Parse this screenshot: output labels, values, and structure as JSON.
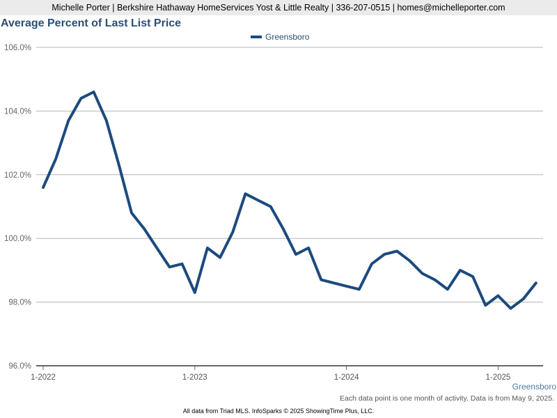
{
  "header": {
    "text": "Michelle Porter | Berkshire Hathaway HomeServices Yost & Little Realty | 336-207-0515 | homes@michelleporter.com"
  },
  "chart_data": {
    "type": "line",
    "title": "Average Percent of Last List Price",
    "xlabel": "",
    "ylabel": "",
    "ylim": [
      96,
      106
    ],
    "y_ticks": [
      {
        "value": 96,
        "label": "96.0%"
      },
      {
        "value": 98,
        "label": "98.0%"
      },
      {
        "value": 100,
        "label": "100.0%"
      },
      {
        "value": 102,
        "label": "102.0%"
      },
      {
        "value": 104,
        "label": "104.0%"
      },
      {
        "value": 106,
        "label": "106.0%"
      }
    ],
    "x_ticks": [
      {
        "index": 0,
        "label": "1-2022"
      },
      {
        "index": 12,
        "label": "1-2023"
      },
      {
        "index": 24,
        "label": "1-2024"
      },
      {
        "index": 36,
        "label": "1-2025"
      }
    ],
    "x_start": "2022-01",
    "x_step": "month",
    "grid": true,
    "legend_position": "top-center",
    "series": [
      {
        "name": "Greensboro",
        "color": "#1c4a7e",
        "values": [
          101.6,
          102.5,
          103.7,
          104.4,
          104.6,
          103.7,
          102.3,
          100.8,
          100.3,
          99.7,
          99.1,
          99.2,
          98.3,
          99.7,
          99.4,
          100.2,
          101.4,
          101.2,
          101.0,
          100.3,
          99.5,
          99.7,
          98.7,
          98.6,
          98.5,
          98.4,
          99.2,
          99.5,
          99.6,
          99.3,
          98.9,
          98.7,
          98.4,
          99.0,
          98.8,
          97.9,
          98.2,
          97.8,
          98.1,
          98.6
        ]
      }
    ]
  },
  "corner_label": "Greensboro",
  "footnote": "Each data point is one month of activity. Data is from May 9, 2025.",
  "source": "All data from Triad MLS. InfoSparks © 2025 ShowingTime Plus, LLC."
}
